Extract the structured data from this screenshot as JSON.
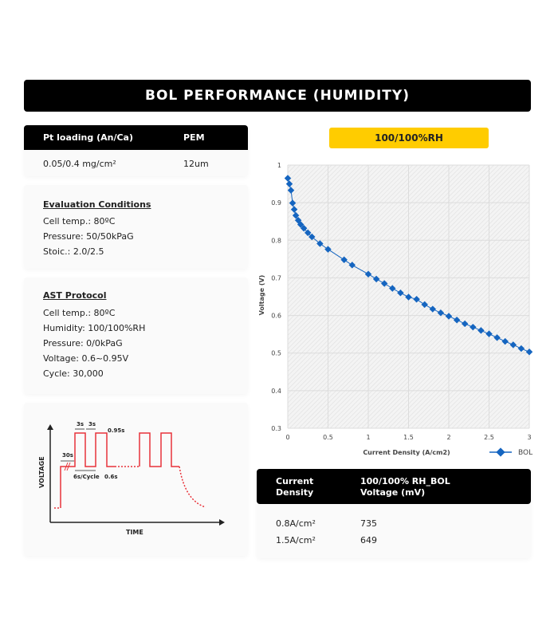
{
  "banner": {
    "title": "BOL PERFORMANCE (HUMIDITY)"
  },
  "spec_table": {
    "headers": [
      "Pt loading (An/Ca)",
      "PEM"
    ],
    "row": [
      "0.05/0.4 mg/cm²",
      "12um"
    ]
  },
  "evaluation": {
    "title": "Evaluation Conditions",
    "lines": [
      "Cell temp.: 80ºC",
      "Pressure: 50/50kPaG",
      "Stoic.: 2.0/2.5"
    ]
  },
  "ast": {
    "title": "AST Protocol",
    "lines": [
      "Cell temp.: 80ºC",
      "Humidity: 100/100%RH",
      "Pressure: 0/0kPaG",
      "Voltage: 0.6~0.95V",
      "Cycle: 30,000"
    ]
  },
  "waveform": {
    "ylabel": "VOLTAGE",
    "xlabel": "TIME",
    "labels": {
      "hold": "30s",
      "high_time1": "3s",
      "high_time2": "3s",
      "high_v": "0.95s",
      "cycle": "6s/Cycle",
      "low_v": "0.6s"
    },
    "color": "#e8333a"
  },
  "chart_label": "100/100%RH",
  "chart_data": {
    "type": "line",
    "xlabel": "Current Density (A/cm2)",
    "ylabel": "Voltage (V)",
    "xlim": [
      0,
      3
    ],
    "ylim": [
      0.3,
      1
    ],
    "xticks": [
      "0",
      "0.5",
      "1",
      "1.5",
      "2",
      "2.5",
      "3"
    ],
    "yticks": [
      "0.3",
      "0.4",
      "0.5",
      "0.6",
      "0.7",
      "0.8",
      "0.9",
      "1"
    ],
    "grid": true,
    "legend": "bottom-right",
    "color": "#1565c0",
    "series": [
      {
        "name": "BOL",
        "x": [
          0,
          0.02,
          0.04,
          0.06,
          0.08,
          0.1,
          0.13,
          0.16,
          0.2,
          0.25,
          0.3,
          0.4,
          0.5,
          0.7,
          0.8,
          1.0,
          1.1,
          1.2,
          1.3,
          1.4,
          1.5,
          1.6,
          1.7,
          1.8,
          1.9,
          2.0,
          2.1,
          2.2,
          2.3,
          2.4,
          2.5,
          2.6,
          2.7,
          2.8,
          2.9,
          3.0
        ],
        "y": [
          0.965,
          0.95,
          0.933,
          0.899,
          0.882,
          0.866,
          0.853,
          0.842,
          0.832,
          0.82,
          0.809,
          0.791,
          0.776,
          0.748,
          0.734,
          0.71,
          0.697,
          0.685,
          0.672,
          0.66,
          0.649,
          0.643,
          0.629,
          0.617,
          0.607,
          0.598,
          0.588,
          0.578,
          0.569,
          0.56,
          0.551,
          0.541,
          0.531,
          0.522,
          0.512,
          0.503
        ]
      }
    ]
  },
  "result_table": {
    "headers": [
      "Current Density",
      "100/100% RH_BOL Voltage (mV)"
    ],
    "rows": [
      [
        "0.8A/cm²",
        "735"
      ],
      [
        "1.5A/cm²",
        "649"
      ]
    ]
  }
}
